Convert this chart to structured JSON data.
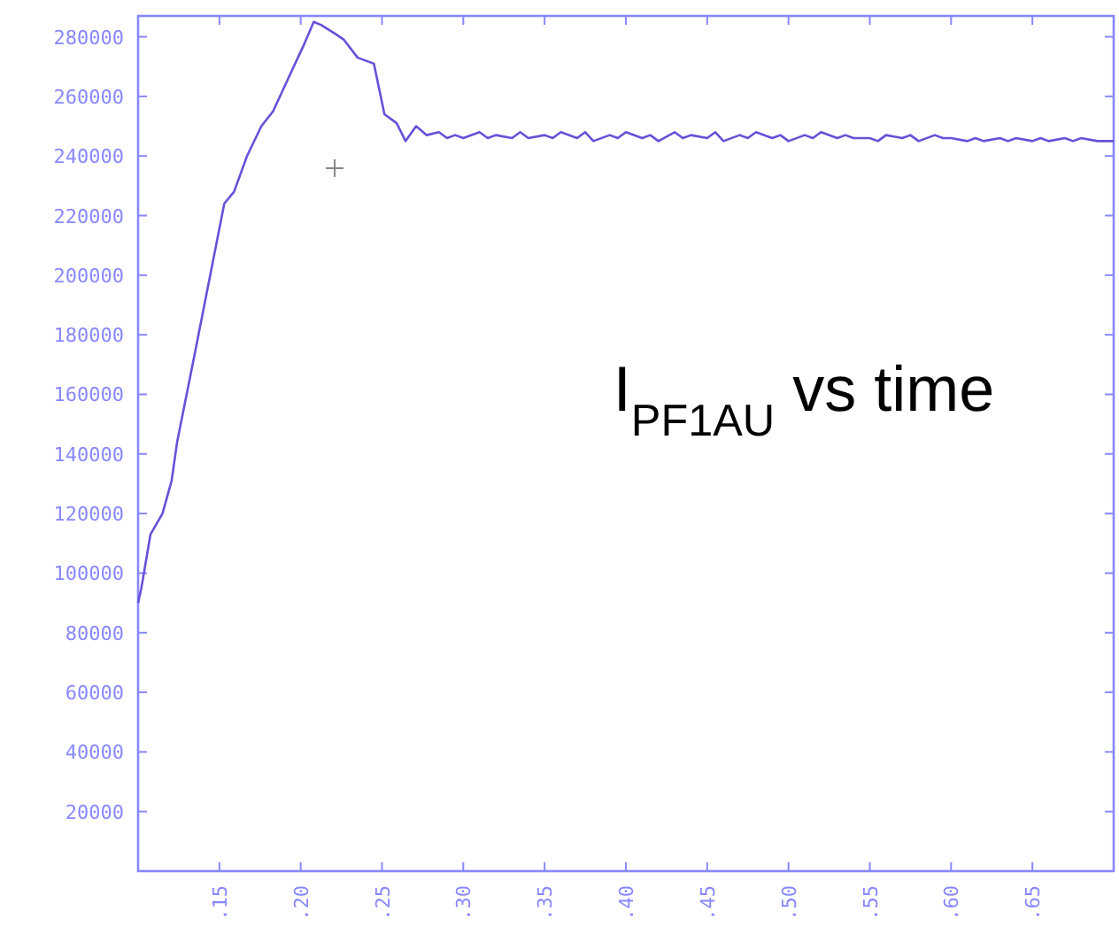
{
  "chart_data": {
    "type": "line",
    "title": "I$_{PF1AU}$ vs time",
    "x": [
      0.1,
      0.102,
      0.1076,
      0.115,
      0.1206,
      0.124,
      0.1346,
      0.1476,
      0.153,
      0.159,
      0.167,
      0.1758,
      0.183,
      0.194,
      0.2017,
      0.208,
      0.2125,
      0.2212,
      0.2266,
      0.235,
      0.245,
      0.2515,
      0.259,
      0.2645,
      0.271,
      0.2775,
      0.285,
      0.29,
      0.295,
      0.3,
      0.31,
      0.315,
      0.32,
      0.33,
      0.335,
      0.34,
      0.35,
      0.355,
      0.36,
      0.37,
      0.375,
      0.38,
      0.39,
      0.395,
      0.4,
      0.41,
      0.415,
      0.42,
      0.43,
      0.435,
      0.44,
      0.45,
      0.455,
      0.46,
      0.47,
      0.475,
      0.48,
      0.49,
      0.495,
      0.5,
      0.51,
      0.515,
      0.52,
      0.53,
      0.535,
      0.54,
      0.55,
      0.555,
      0.56,
      0.57,
      0.575,
      0.58,
      0.59,
      0.595,
      0.6,
      0.61,
      0.615,
      0.62,
      0.63,
      0.635,
      0.64,
      0.65,
      0.655,
      0.66,
      0.67,
      0.675,
      0.68,
      0.69,
      0.695,
      0.7
    ],
    "series": [
      {
        "color": "#6a4fd8",
        "values": [
          90000,
          95000,
          113000,
          120000,
          131000,
          144000,
          173000,
          209000,
          224000,
          228000,
          240000,
          250000,
          255000,
          268000,
          277000,
          285000,
          284000,
          281000,
          279000,
          273000,
          271000,
          254000,
          251000,
          245000,
          250000,
          247000,
          248000,
          246000,
          247000,
          246000,
          248000,
          246000,
          247000,
          246000,
          248000,
          246000,
          247000,
          246000,
          248000,
          246000,
          248000,
          245000,
          247000,
          246000,
          248000,
          246000,
          247000,
          245000,
          248000,
          246000,
          247000,
          246000,
          248000,
          245000,
          247000,
          246000,
          248000,
          246000,
          247000,
          245000,
          247000,
          246000,
          248000,
          246000,
          247000,
          246000,
          246000,
          245000,
          247000,
          246000,
          247000,
          245000,
          247000,
          246000,
          246000,
          245000,
          246000,
          245000,
          246000,
          245000,
          246000,
          245000,
          246000,
          245000,
          246000,
          245000,
          246000,
          245000,
          245000,
          245000
        ]
      }
    ],
    "xlim": [
      0.1,
      0.7
    ],
    "ylim": [
      0,
      287000
    ],
    "xticks": [
      {
        "value": 0.15,
        "label": ".15"
      },
      {
        "value": 0.2,
        "label": ".20"
      },
      {
        "value": 0.25,
        "label": ".25"
      },
      {
        "value": 0.3,
        "label": ".30"
      },
      {
        "value": 0.35,
        "label": ".35"
      },
      {
        "value": 0.4,
        "label": ".40"
      },
      {
        "value": 0.45,
        "label": ".45"
      },
      {
        "value": 0.5,
        "label": ".50"
      },
      {
        "value": 0.55,
        "label": ".55"
      },
      {
        "value": 0.6,
        "label": ".60"
      },
      {
        "value": 0.65,
        "label": ".65"
      }
    ],
    "yticks": [
      20000,
      40000,
      60000,
      80000,
      100000,
      120000,
      140000,
      160000,
      180000,
      200000,
      220000,
      240000,
      260000,
      280000
    ],
    "tick_labels": true
  }
}
